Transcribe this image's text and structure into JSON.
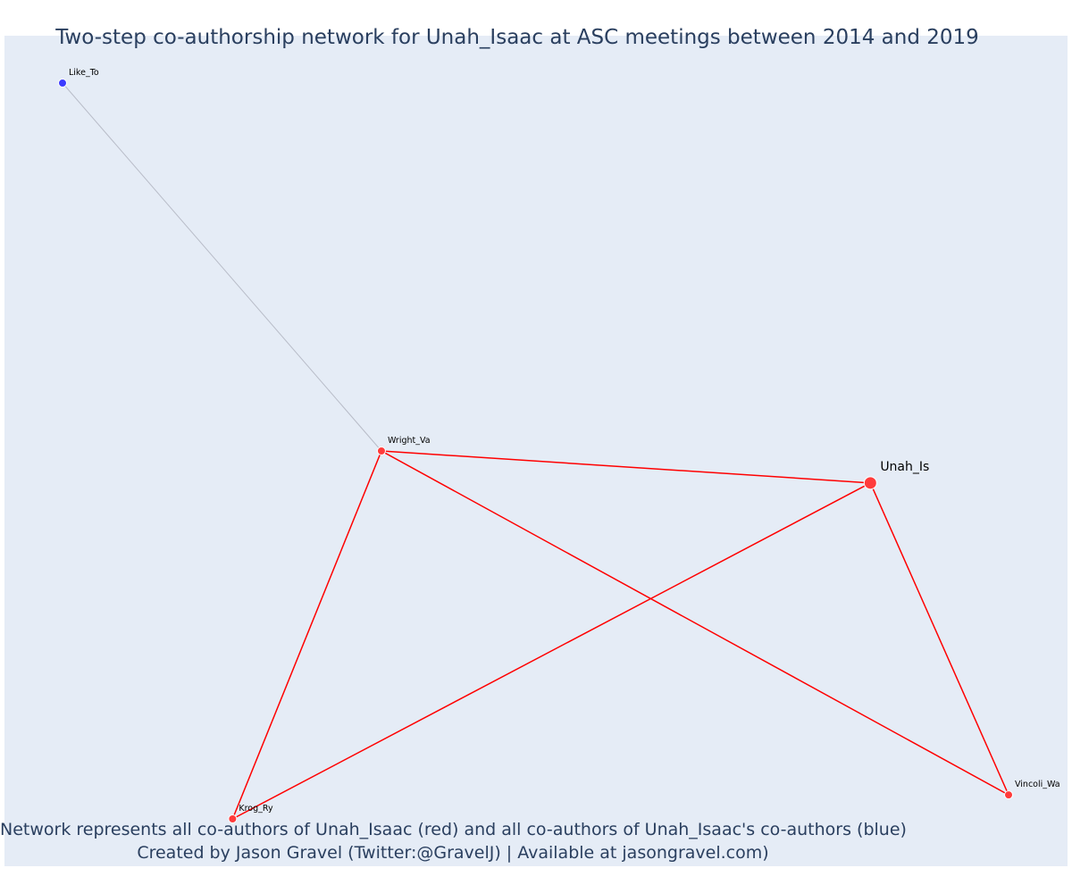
{
  "title": "Two-step co-authorship network for Unah_Isaac at ASC meetings between 2014 and 2019",
  "caption_line1": "Network represents all co-authors of Unah_Isaac (red) and all co-authors of Unah_Isaac's co-authors (blue)",
  "caption_line2": "Created by Jason Gravel (Twitter:@GravelJ) | Available at jasongravel.com)",
  "colors": {
    "background": "#e5ecf6",
    "coauthor_node": "#ff3b3b",
    "second_step_node": "#3b3bff",
    "coauthor_edge": "#ff0000",
    "second_step_edge": "#b8bcc8",
    "text": "#2a3f5f"
  },
  "chart_data": {
    "type": "network",
    "nodes": [
      {
        "id": "Unah_Is",
        "label": "Unah_Is",
        "group": "focal",
        "x": 0.8,
        "y": 0.47
      },
      {
        "id": "Wright_Va",
        "label": "Wright_Va",
        "group": "co-author",
        "x": 0.34,
        "y": 0.51
      },
      {
        "id": "Krog_Ry",
        "label": "Krog_Ry",
        "group": "co-author",
        "x": 0.2,
        "y": 0.05
      },
      {
        "id": "Vincoli_Wa",
        "label": "Vincoli_Wa",
        "group": "co-author",
        "x": 0.93,
        "y": 0.08
      },
      {
        "id": "Like_To",
        "label": "Like_To",
        "group": "second-step",
        "x": 0.04,
        "y": 0.97
      }
    ],
    "edges": [
      {
        "source": "Wright_Va",
        "target": "Unah_Is",
        "type": "co-author"
      },
      {
        "source": "Wright_Va",
        "target": "Krog_Ry",
        "type": "co-author"
      },
      {
        "source": "Wright_Va",
        "target": "Vincoli_Wa",
        "type": "co-author"
      },
      {
        "source": "Unah_Is",
        "target": "Krog_Ry",
        "type": "co-author"
      },
      {
        "source": "Unah_Is",
        "target": "Vincoli_Wa",
        "type": "co-author"
      },
      {
        "source": "Wright_Va",
        "target": "Like_To",
        "type": "second-step"
      }
    ]
  }
}
